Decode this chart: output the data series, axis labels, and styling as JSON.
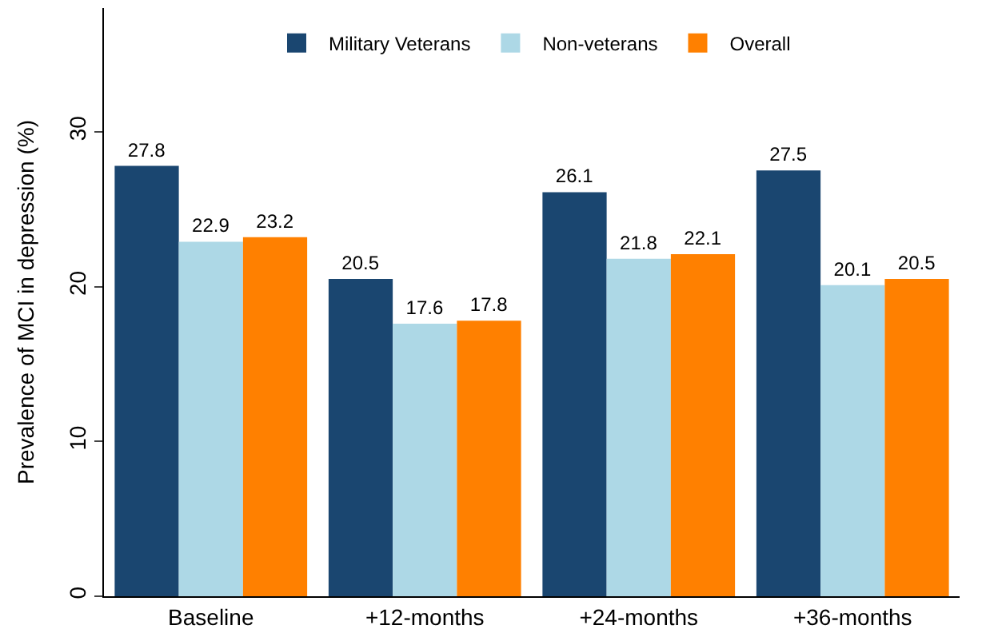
{
  "chart_data": {
    "type": "bar",
    "ylabel": "Prevalence of MCI in depression (%)",
    "categories": [
      "Baseline",
      "+12-months",
      "+24-months",
      "+36-months"
    ],
    "series": [
      {
        "name": "Military Veterans",
        "color": "#1a4670",
        "values": [
          27.8,
          20.5,
          26.1,
          27.5
        ]
      },
      {
        "name": "Non-veterans",
        "color": "#add8e6",
        "values": [
          22.9,
          17.6,
          21.8,
          20.1
        ]
      },
      {
        "name": "Overall",
        "color": "#ff8000",
        "values": [
          23.2,
          17.8,
          22.1,
          20.5
        ]
      }
    ],
    "ylim": [
      0,
      38
    ],
    "yticks": [
      0,
      10,
      20,
      30
    ],
    "legend": "top",
    "data_labels": true
  }
}
